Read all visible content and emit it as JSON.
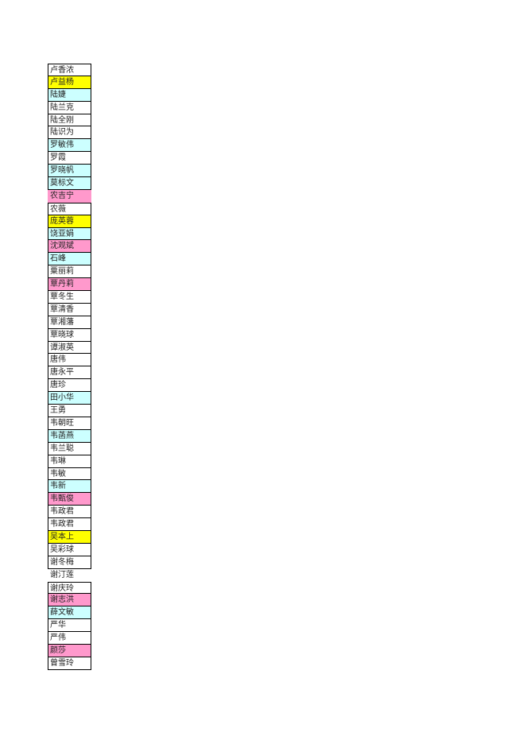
{
  "colors": {
    "white": "#ffffff",
    "yellow": "#ffff00",
    "cyan": "#ccffff",
    "pink": "#ff99cc"
  },
  "rows": [
    {
      "name": "卢香浓",
      "fill": "white"
    },
    {
      "name": "卢益杨",
      "fill": "yellow"
    },
    {
      "name": "陆婕",
      "fill": "cyan"
    },
    {
      "name": "陆兰克",
      "fill": "white"
    },
    {
      "name": "陆全刚",
      "fill": "white"
    },
    {
      "name": "陆识为",
      "fill": "white"
    },
    {
      "name": "罗敏伟",
      "fill": "cyan"
    },
    {
      "name": "罗霞",
      "fill": "white"
    },
    {
      "name": "罗晓帆",
      "fill": "cyan"
    },
    {
      "name": "莫标文",
      "fill": "cyan"
    },
    {
      "name": "农吉宁",
      "fill": "pink",
      "border": false
    },
    {
      "name": "农薇",
      "fill": "white"
    },
    {
      "name": "庞英蓉",
      "fill": "yellow"
    },
    {
      "name": "饶亚娟",
      "fill": "cyan"
    },
    {
      "name": "沈观斌",
      "fill": "pink"
    },
    {
      "name": "石峰",
      "fill": "cyan"
    },
    {
      "name": "粟丽莉",
      "fill": "white"
    },
    {
      "name": "覃丹莉",
      "fill": "pink"
    },
    {
      "name": "覃冬生",
      "fill": "white"
    },
    {
      "name": "覃清香",
      "fill": "white"
    },
    {
      "name": "覃湘藩",
      "fill": "white"
    },
    {
      "name": "覃晓球",
      "fill": "white"
    },
    {
      "name": "谭淑英",
      "fill": "white"
    },
    {
      "name": "唐伟",
      "fill": "white"
    },
    {
      "name": "唐永平",
      "fill": "white"
    },
    {
      "name": "唐珍",
      "fill": "white"
    },
    {
      "name": "田小华",
      "fill": "cyan"
    },
    {
      "name": "王勇",
      "fill": "white"
    },
    {
      "name": "韦朝旺",
      "fill": "white"
    },
    {
      "name": "韦菡燕",
      "fill": "cyan"
    },
    {
      "name": "韦兰聪",
      "fill": "white"
    },
    {
      "name": "韦琳",
      "fill": "white"
    },
    {
      "name": "韦敏",
      "fill": "white"
    },
    {
      "name": "韦新",
      "fill": "cyan"
    },
    {
      "name": "韦甄俊",
      "fill": "pink"
    },
    {
      "name": "韦政君",
      "fill": "white"
    },
    {
      "name": "韦政君",
      "fill": "white"
    },
    {
      "name": "吴本上",
      "fill": "yellow"
    },
    {
      "name": "吴彩球",
      "fill": "white"
    },
    {
      "name": "谢冬梅",
      "fill": "white"
    },
    {
      "name": "谢汀莲",
      "fill": "white",
      "border": false
    },
    {
      "name": "谢庆玲",
      "fill": "white"
    },
    {
      "name": "谢志洪",
      "fill": "pink"
    },
    {
      "name": "薛文敏",
      "fill": "cyan"
    },
    {
      "name": "严华",
      "fill": "white"
    },
    {
      "name": "严伟",
      "fill": "white"
    },
    {
      "name": "颜莎",
      "fill": "pink"
    },
    {
      "name": "曾雪玲",
      "fill": "white"
    }
  ]
}
